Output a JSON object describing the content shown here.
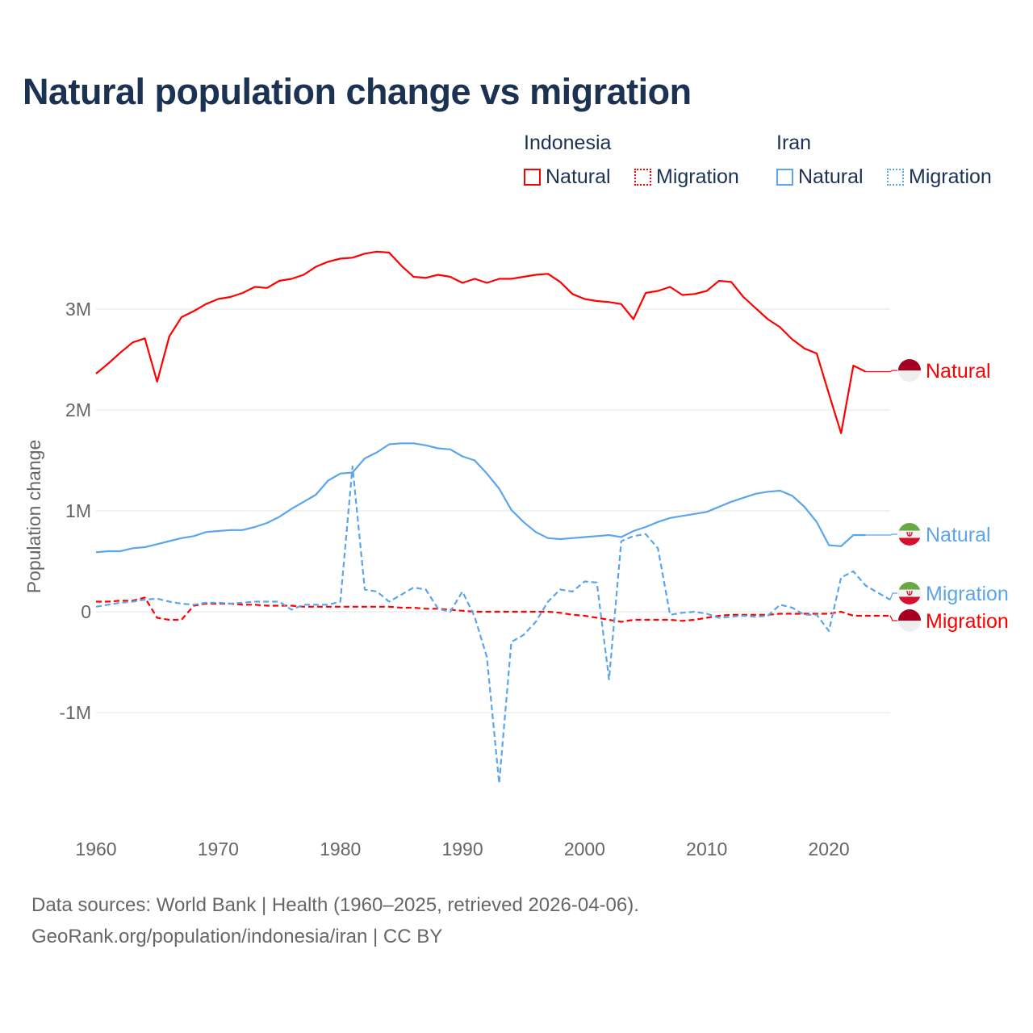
{
  "title": "Natural population change vs migration",
  "legend": {
    "groups": [
      {
        "name": "Indonesia",
        "items": [
          "Natural",
          "Migration"
        ]
      },
      {
        "name": "Iran",
        "items": [
          "Natural",
          "Migration"
        ]
      }
    ]
  },
  "footer": {
    "line1": "Data sources: World Bank | Health (1960–2025, retrieved 2026-04-06).",
    "line2": "GeoRank.org/population/indonesia/iran | CC BY"
  },
  "colors": {
    "indonesia": "#ff0000",
    "iran": "#5aa5ec",
    "title": "#1b3252",
    "grid": "#e6e6e6"
  },
  "chart_data": {
    "type": "line",
    "title": "Natural population change vs migration",
    "xlabel": "",
    "ylabel": "Population change",
    "xlim": [
      1960,
      2025
    ],
    "ylim": [
      -2000000,
      3800000
    ],
    "x_ticks": [
      1960,
      1970,
      1980,
      1990,
      2000,
      2010,
      2020
    ],
    "x_tick_labels": [
      "1960",
      "1970",
      "1980",
      "1990",
      "2000",
      "2010",
      "2020"
    ],
    "y_ticks": [
      -1000000,
      0,
      1000000,
      2000000,
      3000000
    ],
    "y_tick_labels": [
      "-1M",
      "0",
      "1M",
      "2M",
      "3M"
    ],
    "grid": true,
    "legend_placement": "top-right",
    "start_year": 1960,
    "series": [
      {
        "name": "Natural",
        "country": "Indonesia",
        "style": "solid",
        "end_label": "Natural",
        "values": [
          2.36,
          2.46,
          2.57,
          2.67,
          2.71,
          2.28,
          2.73,
          2.92,
          2.98,
          3.05,
          3.1,
          3.12,
          3.16,
          3.22,
          3.21,
          3.28,
          3.3,
          3.34,
          3.42,
          3.47,
          3.5,
          3.51,
          3.55,
          3.57,
          3.56,
          3.43,
          3.32,
          3.31,
          3.34,
          3.32,
          3.26,
          3.3,
          3.26,
          3.3,
          3.3,
          3.32,
          3.34,
          3.35,
          3.27,
          3.15,
          3.1,
          3.08,
          3.07,
          3.05,
          2.9,
          3.16,
          3.18,
          3.22,
          3.14,
          3.15,
          3.18,
          3.28,
          3.27,
          3.12,
          3.01,
          2.9,
          2.82,
          2.7,
          2.61,
          2.56,
          2.16,
          1.77,
          2.44,
          2.38
        ]
      },
      {
        "name": "Migration",
        "country": "Indonesia",
        "style": "dashed",
        "end_label": "Migration",
        "values": [
          0.1,
          0.1,
          0.11,
          0.11,
          0.14,
          -0.06,
          -0.08,
          -0.08,
          0.06,
          0.08,
          0.08,
          0.08,
          0.07,
          0.07,
          0.06,
          0.06,
          0.06,
          0.05,
          0.05,
          0.05,
          0.05,
          0.05,
          0.05,
          0.05,
          0.05,
          0.04,
          0.04,
          0.03,
          0.03,
          0.02,
          0.01,
          0.0,
          0.0,
          0.0,
          0.0,
          0.0,
          0.0,
          0.0,
          -0.01,
          -0.03,
          -0.04,
          -0.06,
          -0.08,
          -0.1,
          -0.08,
          -0.08,
          -0.08,
          -0.08,
          -0.09,
          -0.08,
          -0.06,
          -0.04,
          -0.03,
          -0.03,
          -0.03,
          -0.03,
          -0.02,
          -0.02,
          -0.02,
          -0.02,
          -0.02,
          0.0,
          -0.04,
          -0.04,
          -0.04,
          -0.04
        ]
      },
      {
        "name": "Natural",
        "country": "Iran",
        "style": "solid",
        "end_label": "Natural",
        "values": [
          0.59,
          0.6,
          0.6,
          0.63,
          0.64,
          0.67,
          0.7,
          0.73,
          0.75,
          0.79,
          0.8,
          0.81,
          0.81,
          0.84,
          0.88,
          0.94,
          1.02,
          1.09,
          1.16,
          1.3,
          1.37,
          1.38,
          1.52,
          1.58,
          1.66,
          1.67,
          1.67,
          1.65,
          1.62,
          1.61,
          1.54,
          1.5,
          1.37,
          1.22,
          1.01,
          0.89,
          0.79,
          0.73,
          0.72,
          0.73,
          0.74,
          0.75,
          0.76,
          0.74,
          0.8,
          0.84,
          0.89,
          0.93,
          0.95,
          0.97,
          0.99,
          1.04,
          1.09,
          1.13,
          1.17,
          1.19,
          1.2,
          1.15,
          1.04,
          0.89,
          0.66,
          0.65,
          0.76,
          0.76
        ]
      },
      {
        "name": "Migration",
        "country": "Iran",
        "style": "dashed",
        "end_label": "Migration",
        "values": [
          0.05,
          0.07,
          0.09,
          0.1,
          0.12,
          0.13,
          0.1,
          0.08,
          0.07,
          0.09,
          0.09,
          0.08,
          0.09,
          0.1,
          0.1,
          0.1,
          0.02,
          0.07,
          0.07,
          0.07,
          0.1,
          1.44,
          0.22,
          0.2,
          0.1,
          0.17,
          0.24,
          0.22,
          0.03,
          0.0,
          0.2,
          -0.05,
          -0.45,
          -1.7,
          -0.3,
          -0.23,
          -0.1,
          0.1,
          0.22,
          0.2,
          0.3,
          0.29,
          -0.67,
          0.7,
          0.75,
          0.77,
          0.63,
          -0.03,
          -0.01,
          0.0,
          -0.02,
          -0.06,
          -0.05,
          -0.04,
          -0.05,
          -0.04,
          0.07,
          0.04,
          -0.03,
          -0.03,
          -0.19,
          0.34,
          0.4,
          0.26,
          0.19,
          0.12
        ]
      }
    ],
    "value_unit": "millions"
  }
}
